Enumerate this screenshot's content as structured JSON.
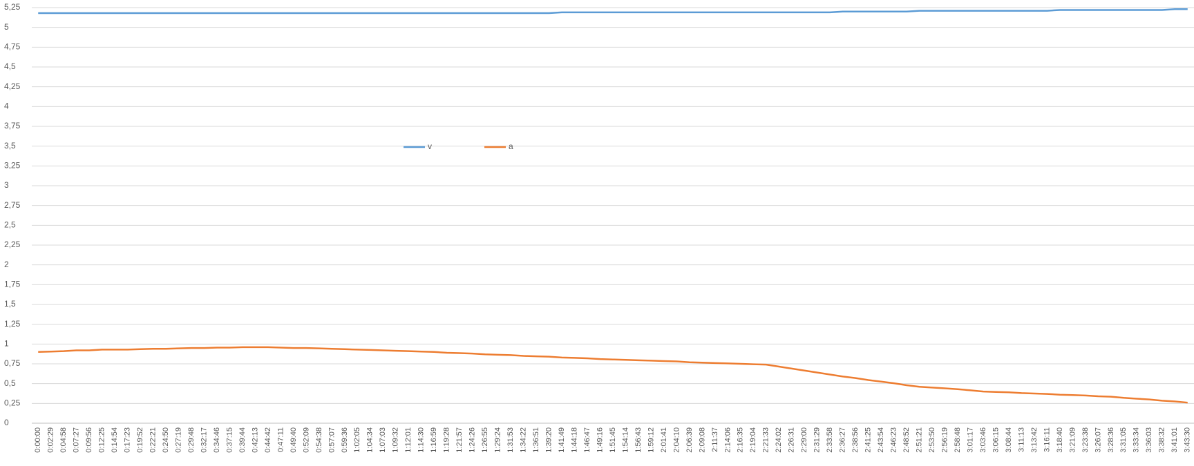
{
  "chart_data": {
    "type": "line",
    "categories": [
      "0:00:00",
      "0:02:29",
      "0:04:58",
      "0:07:27",
      "0:09:56",
      "0:12:25",
      "0:14:54",
      "0:17:23",
      "0:19:52",
      "0:22:21",
      "0:24:50",
      "0:27:19",
      "0:29:48",
      "0:32:17",
      "0:34:46",
      "0:37:15",
      "0:39:44",
      "0:42:13",
      "0:44:42",
      "0:47:11",
      "0:49:40",
      "0:52:09",
      "0:54:38",
      "0:57:07",
      "0:59:36",
      "1:02:05",
      "1:04:34",
      "1:07:03",
      "1:09:32",
      "1:12:01",
      "1:14:30",
      "1:16:59",
      "1:19:28",
      "1:21:57",
      "1:24:26",
      "1:26:55",
      "1:29:24",
      "1:31:53",
      "1:34:22",
      "1:36:51",
      "1:39:20",
      "1:41:49",
      "1:44:18",
      "1:46:47",
      "1:49:16",
      "1:51:45",
      "1:54:14",
      "1:56:43",
      "1:59:12",
      "2:01:41",
      "2:04:10",
      "2:06:39",
      "2:09:08",
      "2:11:37",
      "2:14:06",
      "2:16:35",
      "2:19:04",
      "2:21:33",
      "2:24:02",
      "2:26:31",
      "2:29:00",
      "2:31:29",
      "2:33:58",
      "2:36:27",
      "2:38:56",
      "2:41:25",
      "2:43:54",
      "2:46:23",
      "2:48:52",
      "2:51:21",
      "2:53:50",
      "2:56:19",
      "2:58:48",
      "3:01:17",
      "3:03:46",
      "3:06:15",
      "3:08:44",
      "3:11:13",
      "3:13:42",
      "3:16:11",
      "3:18:40",
      "3:21:09",
      "3:23:38",
      "3:26:07",
      "3:28:36",
      "3:31:05",
      "3:33:34",
      "3:36:03",
      "3:38:32",
      "3:41:01",
      "3:43:30"
    ],
    "series": [
      {
        "name": "v",
        "color": "#5b9bd5",
        "values": [
          5.18,
          5.18,
          5.18,
          5.18,
          5.18,
          5.18,
          5.18,
          5.18,
          5.18,
          5.18,
          5.18,
          5.18,
          5.18,
          5.18,
          5.18,
          5.18,
          5.18,
          5.18,
          5.18,
          5.18,
          5.18,
          5.18,
          5.18,
          5.18,
          5.18,
          5.18,
          5.18,
          5.18,
          5.18,
          5.18,
          5.18,
          5.18,
          5.18,
          5.18,
          5.18,
          5.18,
          5.18,
          5.18,
          5.18,
          5.18,
          5.18,
          5.19,
          5.19,
          5.19,
          5.19,
          5.19,
          5.19,
          5.19,
          5.19,
          5.19,
          5.19,
          5.19,
          5.19,
          5.19,
          5.19,
          5.19,
          5.19,
          5.19,
          5.19,
          5.19,
          5.19,
          5.19,
          5.19,
          5.2,
          5.2,
          5.2,
          5.2,
          5.2,
          5.2,
          5.21,
          5.21,
          5.21,
          5.21,
          5.21,
          5.21,
          5.21,
          5.21,
          5.21,
          5.21,
          5.21,
          5.22,
          5.22,
          5.22,
          5.22,
          5.22,
          5.22,
          5.22,
          5.22,
          5.22,
          5.23,
          5.23
        ]
      },
      {
        "name": "a",
        "color": "#ed7d31",
        "values": [
          0.9,
          0.905,
          0.91,
          0.92,
          0.92,
          0.93,
          0.93,
          0.93,
          0.935,
          0.94,
          0.94,
          0.945,
          0.95,
          0.95,
          0.955,
          0.955,
          0.96,
          0.96,
          0.96,
          0.955,
          0.95,
          0.95,
          0.945,
          0.94,
          0.935,
          0.93,
          0.925,
          0.92,
          0.915,
          0.91,
          0.905,
          0.9,
          0.89,
          0.885,
          0.88,
          0.87,
          0.865,
          0.86,
          0.85,
          0.845,
          0.84,
          0.83,
          0.825,
          0.82,
          0.81,
          0.805,
          0.8,
          0.795,
          0.79,
          0.785,
          0.78,
          0.77,
          0.765,
          0.76,
          0.755,
          0.75,
          0.745,
          0.74,
          0.715,
          0.69,
          0.665,
          0.64,
          0.615,
          0.59,
          0.57,
          0.545,
          0.525,
          0.505,
          0.48,
          0.46,
          0.45,
          0.44,
          0.43,
          0.415,
          0.4,
          0.395,
          0.39,
          0.38,
          0.375,
          0.37,
          0.36,
          0.355,
          0.35,
          0.34,
          0.335,
          0.32,
          0.31,
          0.3,
          0.285,
          0.275,
          0.26
        ]
      }
    ],
    "ylim": [
      0,
      5.25
    ],
    "yticks": [
      0,
      {
        "value": 0.25,
        "label": "0,25"
      },
      {
        "value": 0.5,
        "label": "0,5"
      },
      {
        "value": 0.75,
        "label": "0,75"
      },
      1,
      {
        "value": 1.25,
        "label": "1,25"
      },
      {
        "value": 1.5,
        "label": "1,5"
      },
      {
        "value": 1.75,
        "label": "1,75"
      },
      2,
      {
        "value": 2.25,
        "label": "2,25"
      },
      {
        "value": 2.5,
        "label": "2,5"
      },
      {
        "value": 2.75,
        "label": "2,75"
      },
      3,
      {
        "value": 3.25,
        "label": "3,25"
      },
      {
        "value": 3.5,
        "label": "3,5"
      },
      {
        "value": 3.75,
        "label": "3,75"
      },
      4,
      {
        "value": 4.25,
        "label": "4,25"
      },
      {
        "value": 4.5,
        "label": "4,5"
      },
      {
        "value": 4.75,
        "label": "4,75"
      },
      5,
      {
        "value": 5.25,
        "label": "5,25"
      }
    ],
    "grid": true
  }
}
